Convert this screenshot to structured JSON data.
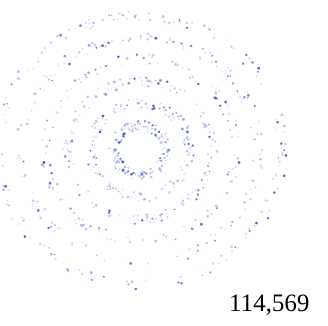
{
  "figure": {
    "caption": "114,569",
    "dot_color": "#3346b8",
    "light_dot_color": "#a9b4e6"
  }
}
